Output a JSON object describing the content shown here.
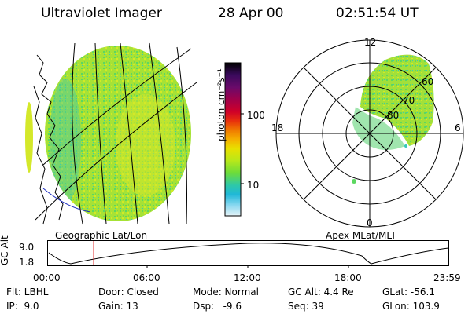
{
  "header": {
    "instrument": "Ultraviolet Imager",
    "date": "28 Apr 00",
    "time": "02:51:54 UT"
  },
  "colorbar": {
    "unit_label": "photon cm⁻²s⁻¹",
    "scale": "log",
    "ticks": [
      "100",
      "10"
    ],
    "colors": [
      "#000000",
      "#3a0a5c",
      "#6a0a6a",
      "#a0004a",
      "#d00028",
      "#e8300c",
      "#f07a00",
      "#f5b000",
      "#e8e000",
      "#b8e81a",
      "#6cdc3a",
      "#2ec8a8",
      "#20b8d8",
      "#88d8f0",
      "#e8f4f8"
    ]
  },
  "left_panel": {
    "label": "Geographic Lat/Lon",
    "dominant_colors": [
      "#9be038",
      "#c8e828",
      "#5cd860",
      "#38c8b8"
    ]
  },
  "right_panel": {
    "label": "Apex MLat/MLT",
    "mlt_labels": {
      "top": "12",
      "left": "18",
      "right": "6",
      "bottom": "0"
    },
    "mlat_labels": [
      "60",
      "70",
      "80"
    ]
  },
  "altitude_plot": {
    "ylabel": "GC Alt",
    "yticks": [
      "9.0",
      "1.8"
    ],
    "xticks": [
      "00:00",
      "06:00",
      "12:00",
      "18:00",
      "23:59"
    ],
    "marker_color": "#e03030"
  },
  "footer": {
    "row1": {
      "flt": "Flt: LBHL",
      "door": "Door: Closed",
      "mode": "Mode: Normal",
      "gcalt": "GC Alt: 4.4 Re",
      "glat": "GLat: -56.1"
    },
    "row2": {
      "ip": "IP:  9.0",
      "gain": "Gain: 13",
      "dsp": "Dsp:   -9.6",
      "seq": "Seq: 39",
      "glon": "GLon: 103.9"
    }
  }
}
